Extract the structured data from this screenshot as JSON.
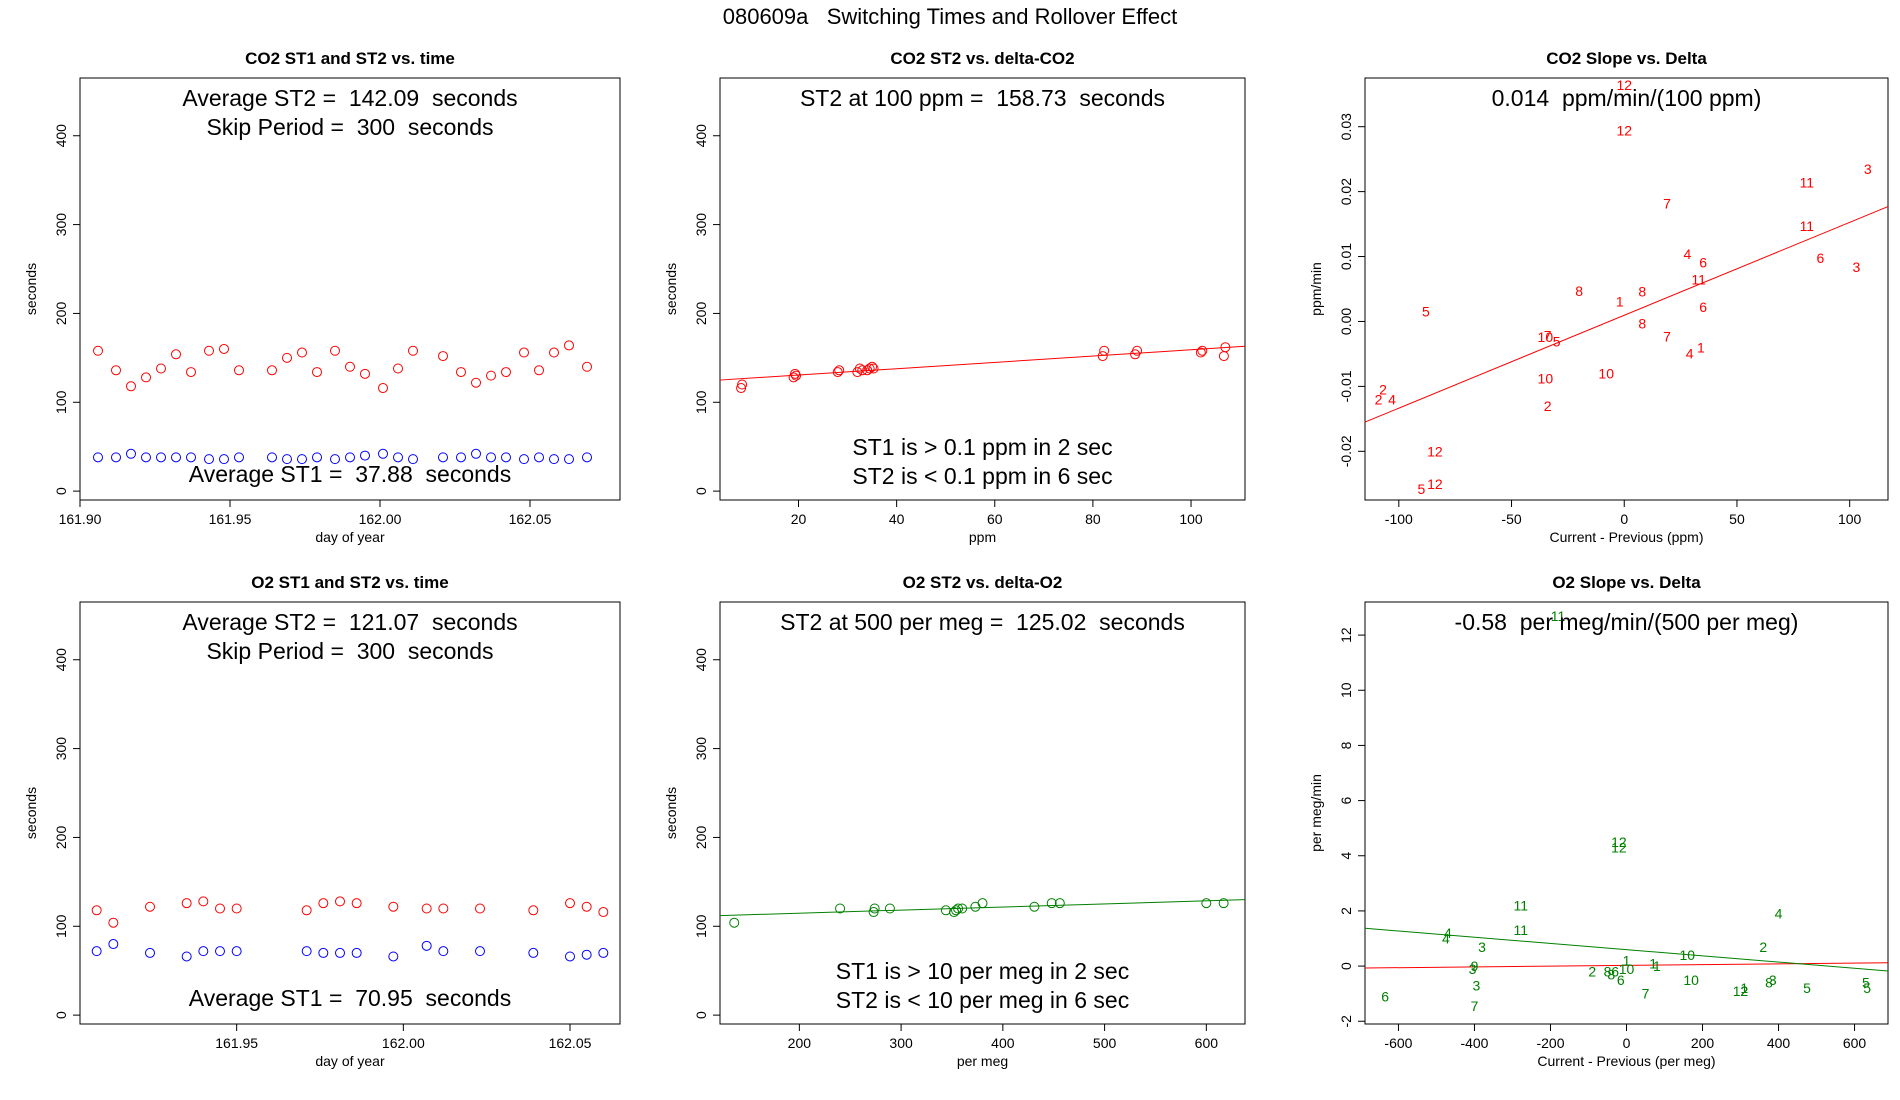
{
  "page_title": "080609a   Switching Times and Rollover Effect",
  "colors": {
    "st2": "#ff0000",
    "st1": "#0000ff",
    "co2": "#ff0000",
    "o2": "#008000",
    "frame": "#000000"
  },
  "chart_data": [
    {
      "id": "co2-time",
      "type": "scatter",
      "title": "CO2 ST1 and ST2 vs. time",
      "xlabel": "day of year",
      "ylabel": "seconds",
      "xlim": [
        161.9,
        162.08
      ],
      "ylim": [
        -10,
        465
      ],
      "xticks": [
        "161.90",
        "161.95",
        "162.00",
        "162.05"
      ],
      "yticks": [
        "0",
        "100",
        "200",
        "300",
        "400"
      ],
      "annotations": [
        "Average ST2 =  142.09  seconds",
        "Skip Period =  300  seconds",
        "Average ST1 =  37.88  seconds"
      ],
      "series": [
        {
          "color": "#ff0000",
          "x": [
            161.906,
            161.912,
            161.917,
            161.922,
            161.927,
            161.932,
            161.937,
            161.943,
            161.948,
            161.953,
            161.964,
            161.969,
            161.974,
            161.979,
            161.985,
            161.99,
            161.995,
            162.001,
            162.006,
            162.011,
            162.021,
            162.027,
            162.032,
            162.037,
            162.042,
            162.048,
            162.053,
            162.058,
            162.063,
            162.069
          ],
          "y": [
            158,
            136,
            118,
            128,
            138,
            154,
            134,
            158,
            160,
            136,
            136,
            150,
            156,
            134,
            158,
            140,
            132,
            116,
            138,
            158,
            152,
            134,
            122,
            130,
            134,
            156,
            136,
            156,
            164,
            140
          ]
        },
        {
          "color": "#0000ff",
          "x": [
            161.906,
            161.912,
            161.917,
            161.922,
            161.927,
            161.932,
            161.937,
            161.943,
            161.948,
            161.953,
            161.964,
            161.969,
            161.974,
            161.979,
            161.985,
            161.99,
            161.995,
            162.001,
            162.006,
            162.011,
            162.021,
            162.027,
            162.032,
            162.037,
            162.042,
            162.048,
            162.053,
            162.058,
            162.063,
            162.069
          ],
          "y": [
            38,
            38,
            42,
            38,
            38,
            38,
            38,
            36,
            36,
            38,
            38,
            36,
            36,
            38,
            36,
            38,
            40,
            42,
            38,
            36,
            38,
            38,
            42,
            38,
            38,
            36,
            38,
            36,
            36,
            38
          ]
        }
      ]
    },
    {
      "id": "co2-st2-delta",
      "type": "scatter",
      "title": "CO2 ST2 vs. delta-CO2",
      "xlabel": "ppm",
      "ylabel": "seconds",
      "xlim": [
        4,
        111
      ],
      "ylim": [
        -10,
        465
      ],
      "xticks": [
        "20",
        "40",
        "60",
        "80",
        "100"
      ],
      "yticks": [
        "0",
        "100",
        "200",
        "300",
        "400"
      ],
      "annotations": [
        "ST2 at 100 ppm =  158.73  seconds",
        "ST1 is > 0.1 ppm in 2 sec",
        "ST2 is < 0.1 ppm in 6 sec"
      ],
      "fit_line": {
        "color": "#ff0000",
        "x": [
          4,
          111
        ],
        "y": [
          125,
          163
        ]
      },
      "series": [
        {
          "color": "#ff0000",
          "x": [
            8.3,
            8.5,
            19,
            19.3,
            19.5,
            28,
            28.3,
            32,
            32.5,
            33,
            34,
            34.5,
            35,
            35.3,
            82,
            82.3,
            88.6,
            89,
            102,
            102.3,
            106.7,
            107
          ],
          "y": [
            116,
            120,
            128,
            132,
            130,
            134,
            136,
            134,
            138,
            136,
            136,
            138,
            140,
            138,
            152,
            158,
            154,
            158,
            156,
            158,
            152,
            162
          ]
        }
      ]
    },
    {
      "id": "co2-slope-delta",
      "type": "scatter",
      "title": "CO2 Slope vs. Delta",
      "xlabel": "Current - Previous (ppm)",
      "ylabel": "ppm/min",
      "xlim": [
        -115,
        117
      ],
      "ylim": [
        -0.0275,
        0.0375
      ],
      "xticks": [
        "-100",
        "-50",
        "0",
        "50",
        "100"
      ],
      "yticks": [
        "-0.02",
        "-0.01",
        "0.00",
        "0.01",
        "0.02",
        "0.03"
      ],
      "annotations": [
        "0.014  ppm/min/(100 ppm)"
      ],
      "fit_line": {
        "color": "#ff0000",
        "x": [
          -115,
          117
        ],
        "y": [
          -0.0155,
          0.0177
        ]
      },
      "series": [
        {
          "color": "#ff0000",
          "x": [
            0,
            0,
            108,
            81,
            81,
            19,
            28,
            35,
            87,
            103,
            33,
            -20,
            -2,
            8,
            -88,
            35,
            -35,
            -34,
            -30,
            8,
            19,
            29,
            34,
            -35,
            -8,
            -34,
            -107,
            -103,
            -109,
            -84,
            -84,
            -90
          ],
          "y": [
            0.0364,
            0.0294,
            0.0235,
            0.0214,
            0.0147,
            0.0182,
            0.0104,
            0.0091,
            0.0098,
            0.0084,
            0.0065,
            0.0047,
            0.0031,
            0.0046,
            0.0015,
            0.0022,
            -0.0024,
            -0.0022,
            -0.0031,
            -0.0003,
            -0.0023,
            -0.0049,
            -0.004,
            -0.0088,
            -0.008,
            -0.013,
            -0.0105,
            -0.012,
            -0.012,
            -0.02,
            -0.025,
            -0.0258
          ],
          "labels": [
            "12",
            "12",
            "3",
            "11",
            "11",
            "7",
            "4",
            "6",
            "6",
            "3",
            "11",
            "8",
            "1",
            "8",
            "5",
            "6",
            "10",
            "7",
            "5",
            "8",
            "7",
            "4",
            "1",
            "10",
            "10",
            "2",
            "2",
            "4",
            "2",
            "12",
            "12",
            "5"
          ]
        }
      ]
    },
    {
      "id": "o2-time",
      "type": "scatter",
      "title": "O2 ST1 and ST2 vs. time",
      "xlabel": "day of year",
      "ylabel": "seconds",
      "xlim": [
        161.903,
        162.065
      ],
      "ylim": [
        -10,
        465
      ],
      "xticks": [
        "161.95",
        "162.00",
        "162.05"
      ],
      "yticks": [
        "0",
        "100",
        "200",
        "300",
        "400"
      ],
      "annotations": [
        "Average ST2 =  121.07  seconds",
        "Skip Period =  300  seconds",
        "Average ST1 =  70.95  seconds"
      ],
      "series": [
        {
          "color": "#ff0000",
          "x": [
            161.908,
            161.913,
            161.924,
            161.935,
            161.94,
            161.945,
            161.95,
            161.971,
            161.976,
            161.981,
            161.986,
            161.997,
            162.007,
            162.012,
            162.023,
            162.039,
            162.05,
            162.055,
            162.06
          ],
          "y": [
            118,
            104,
            122,
            126,
            128,
            120,
            120,
            118,
            126,
            128,
            126,
            122,
            120,
            120,
            120,
            118,
            126,
            122,
            116
          ]
        },
        {
          "color": "#0000ff",
          "x": [
            161.908,
            161.913,
            161.924,
            161.935,
            161.94,
            161.945,
            161.95,
            161.971,
            161.976,
            161.981,
            161.986,
            161.997,
            162.007,
            162.012,
            162.023,
            162.039,
            162.05,
            162.055,
            162.06
          ],
          "y": [
            72,
            80,
            70,
            66,
            72,
            72,
            72,
            72,
            70,
            70,
            70,
            66,
            78,
            72,
            72,
            70,
            66,
            68,
            70
          ]
        }
      ]
    },
    {
      "id": "o2-st2-delta",
      "type": "scatter",
      "title": "O2 ST2 vs. delta-O2",
      "xlabel": "per meg",
      "ylabel": "seconds",
      "xlim": [
        122,
        638
      ],
      "ylim": [
        -10,
        465
      ],
      "xticks": [
        "200",
        "300",
        "400",
        "500",
        "600"
      ],
      "yticks": [
        "0",
        "100",
        "200",
        "300",
        "400"
      ],
      "annotations": [
        "ST2 at 500 per meg =  125.02  seconds",
        "ST1 is > 10 per meg in 2 sec",
        "ST2 is < 10 per meg in 6 sec"
      ],
      "fit_line": {
        "color": "#008000",
        "x": [
          122,
          638
        ],
        "y": [
          112,
          130
        ]
      },
      "series": [
        {
          "color": "#008000",
          "x": [
            136,
            240,
            273,
            274,
            289,
            344,
            352,
            354,
            356,
            360,
            373,
            380,
            431,
            448,
            456,
            600,
            617
          ],
          "y": [
            104,
            120,
            116,
            120,
            120,
            118,
            116,
            118,
            120,
            120,
            122,
            126,
            122,
            126,
            126,
            126,
            126
          ]
        }
      ]
    },
    {
      "id": "o2-slope-delta",
      "type": "scatter",
      "title": "O2 Slope vs. Delta",
      "xlabel": "Current - Previous (per meg)",
      "ylabel": "per meg/min",
      "xlim": [
        -688,
        688
      ],
      "ylim": [
        -2.1,
        13.2
      ],
      "xticks": [
        "-600",
        "-400",
        "-200",
        "0",
        "200",
        "400",
        "600"
      ],
      "yticks": [
        "-2",
        "0",
        "2",
        "4",
        "6",
        "8",
        "10",
        "12"
      ],
      "annotations": [
        "-0.58  per meg/min/(500 per meg)"
      ],
      "fit_line": {
        "color": "#008000",
        "x": [
          -688,
          688
        ],
        "y": [
          1.37,
          -0.18
        ]
      },
      "extra_lines": [
        {
          "color": "#ff0000",
          "x": [
            -688,
            688
          ],
          "y": [
            -0.07,
            0.12
          ]
        }
      ],
      "series": [
        {
          "color": "#008000",
          "x": [
            -180,
            -20,
            -20,
            -278,
            -278,
            -470,
            -475,
            -380,
            -400,
            -405,
            -395,
            -635,
            -400,
            400,
            360,
            375,
            385,
            -90,
            -50,
            -40,
            -15,
            0,
            -30,
            0,
            70,
            170,
            160,
            50,
            80,
            300,
            310,
            310,
            475,
            630,
            633
          ],
          "y": [
            12.7,
            4.5,
            4.3,
            2.2,
            1.3,
            1.2,
            1.0,
            0.7,
            0.0,
            -0.1,
            -0.7,
            -1.1,
            -1.45,
            1.9,
            0.7,
            -0.6,
            -0.5,
            -0.2,
            -0.2,
            -0.3,
            -0.5,
            0.2,
            -0.2,
            -0.1,
            0.1,
            -0.5,
            0.4,
            -1.0,
            0.0,
            -0.9,
            -0.8,
            -0.9,
            -0.8,
            -0.6,
            -0.8
          ],
          "labels": [
            "11",
            "12",
            "12",
            "11",
            "11",
            "4",
            "4",
            "3",
            "9",
            "3",
            "3",
            "6",
            "7",
            "4",
            "2",
            "8",
            "3",
            "2",
            "8",
            "8",
            "6",
            "1",
            "6",
            "10",
            "1",
            "10",
            "10",
            "7",
            "1",
            "12",
            "1",
            "2",
            "5",
            "5",
            "5"
          ]
        }
      ]
    }
  ]
}
